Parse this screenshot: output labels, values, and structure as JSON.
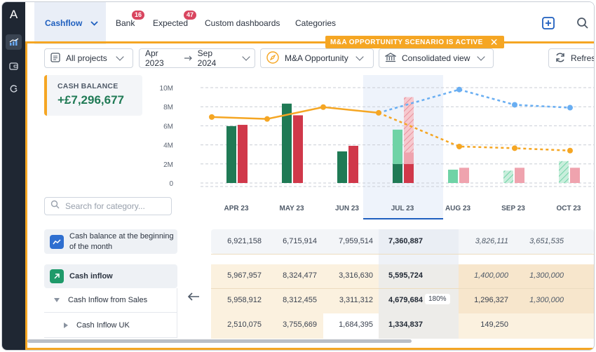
{
  "rail": {
    "logo": "A",
    "items": [
      "chart-icon",
      "wallet-icon",
      "refresh-icon"
    ]
  },
  "tabs": [
    {
      "label": "Cashflow",
      "active": true
    },
    {
      "label": "Bank",
      "badge": "16"
    },
    {
      "label": "Expected",
      "badge": "47"
    },
    {
      "label": "Custom dashboards"
    },
    {
      "label": "Categories"
    }
  ],
  "toolbar": {
    "add_icon": "plus-square-icon",
    "search_icon": "search-icon"
  },
  "scenario": {
    "text": "M&A OPPORTUNITY SCENARIO IS ACTIVE",
    "close": "✕"
  },
  "filters": {
    "projects": "All projects",
    "date_from": "Apr 2023",
    "date_to": "Sep 2024",
    "scenario": "M&A Opportunity",
    "view": "Consolidated view",
    "refresh": "Refresh"
  },
  "balance": {
    "label": "CASH BALANCE",
    "value": "+£7,296,677"
  },
  "chart_data": {
    "type": "bar",
    "categories": [
      "APR 23",
      "MAY 23",
      "JUN 23",
      "JUL 23",
      "AUG 23",
      "SEP 23",
      "OCT 23"
    ],
    "yticks": [
      "10M",
      "8M",
      "6M",
      "4M",
      "2M",
      "0"
    ],
    "ylim": [
      0,
      10000000
    ],
    "series": [
      {
        "values": [
          5967957,
          8324477,
          3316630,
          5595724,
          1400000,
          1300000,
          2300000
        ]
      },
      {
        "values": [
          6100000,
          7100000,
          3900000,
          9000000,
          1600000,
          1600000,
          1600000
        ]
      },
      {
        "values": [
          6921158,
          6715914,
          7959514,
          7360887,
          3826111,
          3651535,
          3400000
        ]
      },
      {
        "values": [
          null,
          null,
          null,
          7360887,
          9800000,
          8200000,
          7900000
        ]
      }
    ],
    "actual_months": 4,
    "colors": {
      "inflow": "#1f7a55",
      "outflow": "#d0384a",
      "inflow_forecast": "#6fd3a6",
      "outflow_forecast": "#efa3ae",
      "actual_line": "#f5a623",
      "scenario_line": "#69aef2"
    }
  },
  "search": {
    "placeholder": "Search for category..."
  },
  "table": {
    "rows": [
      {
        "label": "Cash balance at the beginning of the month",
        "icon": "trend-icon",
        "values": [
          "6,921,158",
          "6,715,914",
          "7,959,514",
          "7,360,887",
          "3,826,111",
          "3,651,535"
        ]
      },
      {
        "label": "Cash inflow",
        "icon": "arrow-up-right-icon",
        "values": [
          "5,967,957",
          "8,324,477",
          "3,316,630",
          "5,595,724",
          "1,400,000",
          "1,300,000"
        ]
      },
      {
        "label": "Cash Inflow from Sales",
        "values": [
          "5,958,912",
          "8,312,455",
          "3,311,312",
          "4,679,684",
          "1,296,327",
          "1,300,000"
        ],
        "badge": "180%"
      },
      {
        "label": "Cash Inflow UK",
        "values": [
          "2,510,075",
          "3,755,669",
          "1,684,395",
          "1,334,837",
          "149,250",
          ""
        ]
      }
    ]
  }
}
